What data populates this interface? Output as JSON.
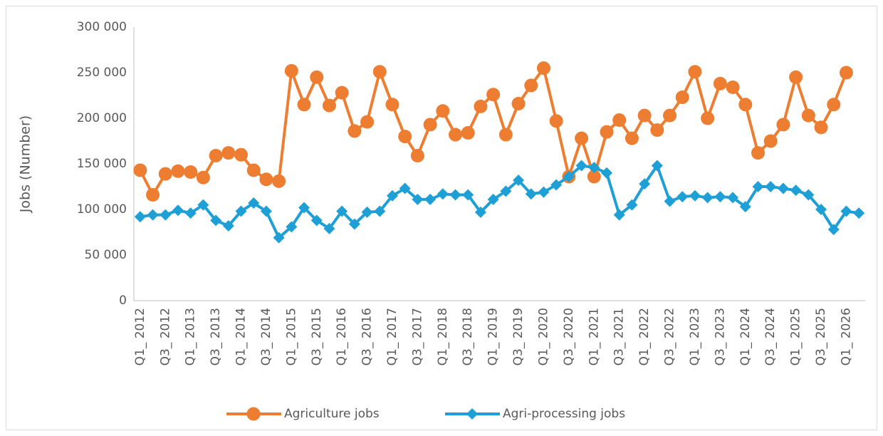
{
  "chart_data": {
    "type": "line",
    "y_label": "Jobs (Number)",
    "categories": [
      "Q1_ 2012",
      null,
      "Q3_ 2012",
      null,
      "Q1_ 2013",
      null,
      "Q3_ 2013",
      null,
      "Q1_ 2014",
      null,
      "Q3_ 2014",
      null,
      "Q1_ 2015",
      null,
      "Q3_ 2015",
      null,
      "Q1_ 2016",
      null,
      "Q3_ 2016",
      null,
      "Q1_ 2017",
      null,
      "Q3_ 2017",
      null,
      "Q1_ 2018",
      null,
      "Q3_ 2018",
      null,
      "Q1_ 2019",
      null,
      "Q3_ 2019",
      null,
      "Q1_ 2020",
      null,
      "Q3_ 2020",
      null,
      "Q1_ 2021",
      null,
      "Q3_ 2021",
      null,
      "Q1_ 2022",
      null,
      "Q3_ 2022",
      null,
      "Q1_ 2023",
      null,
      "Q3_ 2023",
      null,
      "Q1_ 2024",
      null,
      "Q3_ 2024",
      null,
      "Q1_ 2025",
      null,
      "Q3_ 2025",
      null,
      "Q1_ 2026",
      null
    ],
    "series": [
      {
        "name": "Agriculture jobs",
        "color": "#ed7d31",
        "marker": "circle",
        "values": [
          143000,
          116000,
          139000,
          142000,
          141000,
          135000,
          159000,
          162000,
          160000,
          143000,
          133000,
          131000,
          252000,
          215000,
          245000,
          214000,
          228000,
          186000,
          196000,
          251000,
          215000,
          180000,
          159000,
          193000,
          208000,
          182000,
          184000,
          213000,
          226000,
          182000,
          216000,
          236000,
          255000,
          197000,
          136000,
          178000,
          136000,
          185000,
          198000,
          178000,
          203000,
          187000,
          203000,
          223000,
          251000,
          200000,
          238000,
          234000,
          215000,
          162000,
          175000,
          193000,
          245000,
          203000,
          190000,
          215000,
          250000,
          null
        ]
      },
      {
        "name": "Agri-processing jobs",
        "color": "#1e9fd6",
        "marker": "diamond",
        "values": [
          92000,
          94000,
          94000,
          99000,
          96000,
          105000,
          88000,
          82000,
          98000,
          107000,
          98000,
          69000,
          81000,
          102000,
          88000,
          79000,
          98000,
          84000,
          97000,
          98000,
          115000,
          123000,
          111000,
          111000,
          117000,
          116000,
          116000,
          97000,
          111000,
          120000,
          132000,
          117000,
          119000,
          127000,
          136000,
          148000,
          146000,
          140000,
          94000,
          105000,
          128000,
          148000,
          109000,
          114000,
          115000,
          113000,
          114000,
          113000,
          103000,
          125000,
          125000,
          123000,
          121000,
          116000,
          100000,
          78000,
          98000,
          96000
        ]
      }
    ],
    "ylim": [
      0,
      300000
    ],
    "yticks": [
      0,
      {
        "value": 50000,
        "label": "50 000"
      },
      {
        "value": 100000,
        "label": "100 000"
      },
      {
        "value": 150000,
        "label": "150 000"
      },
      {
        "value": 200000,
        "label": "200 000"
      },
      {
        "value": 250000,
        "label": "250 000"
      },
      {
        "value": 300000,
        "label": "300 000"
      }
    ],
    "grid": false,
    "legend": "bottom"
  }
}
